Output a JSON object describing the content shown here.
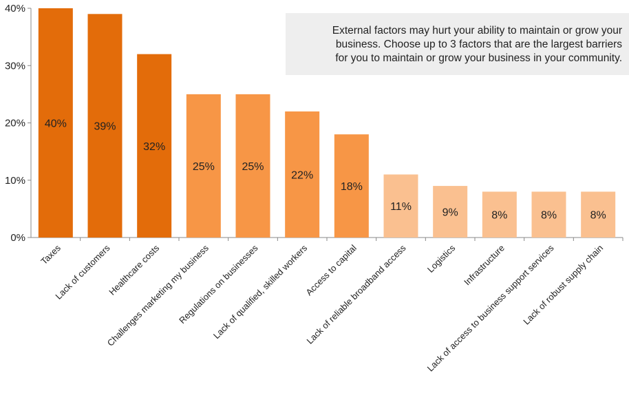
{
  "chart_data": {
    "type": "bar",
    "title": "",
    "xlabel": "",
    "ylabel": "",
    "ylim": [
      0,
      40
    ],
    "yticks": [
      {
        "value": 0,
        "label": "0%"
      },
      {
        "value": 10,
        "label": "10%"
      },
      {
        "value": 20,
        "label": "20%"
      },
      {
        "value": 30,
        "label": "30%"
      },
      {
        "value": 40,
        "label": "40%"
      }
    ],
    "grid": false,
    "categories": [
      "Taxes",
      "Lack of customers",
      "Healthcare costs",
      "Challenges marketing my business",
      "Regulations on businesses",
      "Lack of qualified, skilled workers",
      "Access to capital",
      "Lack of reliable broadband access",
      "Logistics",
      "Infrastructure",
      "Lack of access to business support services",
      "Lack of robust supply chain"
    ],
    "values": [
      40,
      39,
      32,
      25,
      25,
      22,
      18,
      11,
      9,
      8,
      8,
      8
    ],
    "data_labels": [
      "40%",
      "39%",
      "32%",
      "25%",
      "25%",
      "22%",
      "18%",
      "11%",
      "9%",
      "8%",
      "8%",
      "8%"
    ],
    "tiers": [
      0,
      0,
      0,
      1,
      1,
      1,
      1,
      2,
      2,
      2,
      2,
      2
    ]
  },
  "colors": {
    "tier_colors": [
      "#e36c0a",
      "#f79646",
      "#fac090"
    ],
    "axis": "#888888",
    "text": "#222222"
  },
  "annotation": {
    "lines": [
      "External factors may hurt your ability to maintain or grow your",
      "business. Choose up to 3 factors that are the largest barriers",
      "for you to maintain or grow your business in your community."
    ]
  }
}
